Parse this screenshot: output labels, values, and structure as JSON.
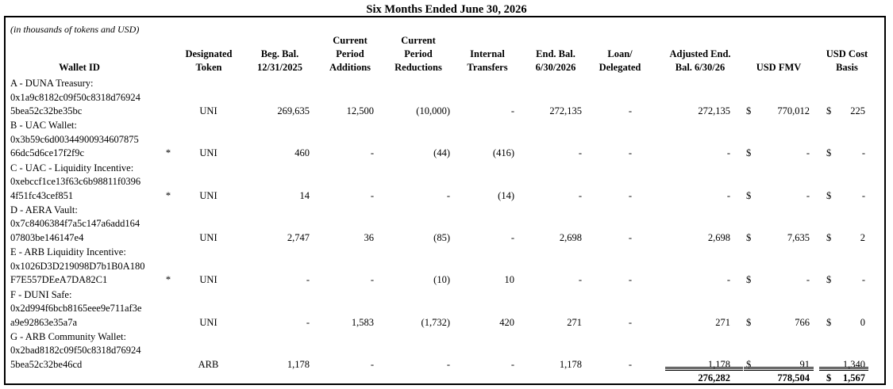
{
  "title": "Six Months Ended June 30, 2026",
  "note": "(in thousands of tokens and USD)",
  "headers": {
    "wallet_id": "Wallet ID",
    "designated_token": "Designated\nToken",
    "beg_bal": "Beg. Bal.\n12/31/2025",
    "additions": "Current\nPeriod\nAdditions",
    "reductions": "Current\nPeriod\nReductions",
    "internal": "Internal\nTransfers",
    "end_bal": "End. Bal.\n6/30/2026",
    "loan": "Loan/\nDelegated",
    "adjusted": "Adjusted End.\nBal. 6/30/26",
    "usd_fmv": "USD FMV",
    "usd_cost": "USD Cost\nBasis"
  },
  "rows": [
    {
      "name": "A - DUNA Treasury:",
      "addr1": "0x1a9c8182c09f50c8318d76924",
      "addr2": "5bea52c32be35bc",
      "star": "",
      "token": "UNI",
      "beg": "269,635",
      "add": "12,500",
      "red": "(10,000)",
      "int": "-",
      "end": "272,135",
      "loan": "-",
      "adj": "272,135",
      "fmv_sym": "$",
      "fmv": "770,012",
      "cost_sym": "$",
      "cost": "225"
    },
    {
      "name": "B - UAC Wallet:",
      "addr1": "0x3b59c6d00344900934607875",
      "addr2": "66dc5d6ce17f2f9c",
      "star": "*",
      "token": "UNI",
      "beg": "460",
      "add": "-",
      "red": "(44)",
      "int": "(416)",
      "end": "-",
      "loan": "-",
      "adj": "-",
      "fmv_sym": "$",
      "fmv": "-",
      "cost_sym": "$",
      "cost": "-"
    },
    {
      "name": "C - UAC - Liquidity Incentive:",
      "addr1": "0xebccf1ce13f63c6b98811f0396",
      "addr2": "4f51fc43cef851",
      "star": "*",
      "token": "UNI",
      "beg": "14",
      "add": "-",
      "red": "-",
      "int": "(14)",
      "end": "-",
      "loan": "-",
      "adj": "-",
      "fmv_sym": "$",
      "fmv": "-",
      "cost_sym": "$",
      "cost": "-"
    },
    {
      "name": "D - AERA Vault:",
      "addr1": "0x7c8406384f7a5c147a6add164",
      "addr2": "07803be146147e4",
      "star": "",
      "token": "UNI",
      "beg": "2,747",
      "add": "36",
      "red": "(85)",
      "int": "-",
      "end": "2,698",
      "loan": "-",
      "adj": "2,698",
      "fmv_sym": "$",
      "fmv": "7,635",
      "cost_sym": "$",
      "cost": "2"
    },
    {
      "name": "E - ARB Liquidity Incentive:",
      "addr1": "0x1026D3D219098D7b1B0A180",
      "addr2": "F7E557DEeA7DA82C1",
      "star": "*",
      "token": "UNI",
      "beg": "-",
      "add": "-",
      "red": "(10)",
      "int": "10",
      "end": "-",
      "loan": "-",
      "adj": "-",
      "fmv_sym": "$",
      "fmv": "-",
      "cost_sym": "$",
      "cost": "-"
    },
    {
      "name": "F - DUNI Safe:",
      "addr1": "0x2d994f6bcb8165eee9e711af3e",
      "addr2": "a9e92863e35a7a",
      "star": "",
      "token": "UNI",
      "beg": "-",
      "add": "1,583",
      "red": "(1,732)",
      "int": "420",
      "end": "271",
      "loan": "-",
      "adj": "271",
      "fmv_sym": "$",
      "fmv": "766",
      "cost_sym": "$",
      "cost": "0"
    },
    {
      "name": "G - ARB Community Wallet:",
      "addr1": "0x2bad8182c09f50c8318d76924",
      "addr2": "5bea52c32be46cd",
      "star": "",
      "token": "ARB",
      "beg": "1,178",
      "add": "-",
      "red": "-",
      "int": "-",
      "end": "1,178",
      "loan": "-",
      "adj": "1,178",
      "fmv_sym": "$",
      "fmv": "91",
      "cost_sym": "",
      "cost": "1,340"
    }
  ],
  "totals": {
    "adjusted": "276,282",
    "usd_fmv": "778,504",
    "usd_cost_sym": "$",
    "usd_cost": "1,567"
  }
}
